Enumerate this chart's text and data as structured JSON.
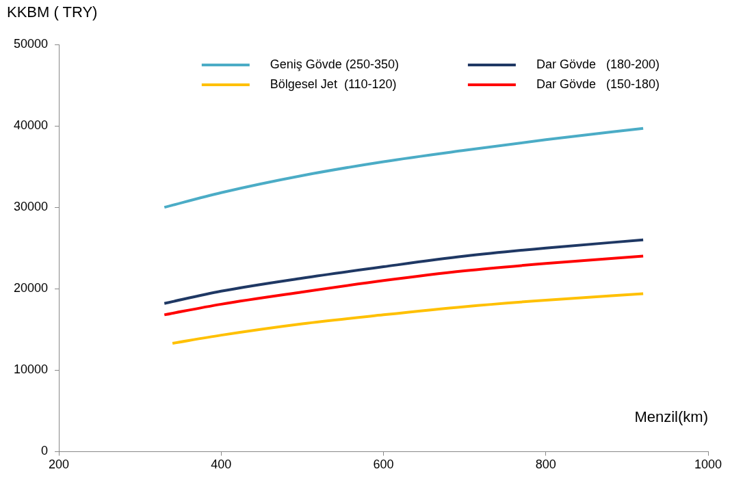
{
  "chart_data": {
    "type": "line",
    "xlabel": "Menzil(km)",
    "ylabel": "KKBM ( TRY)",
    "xlim": [
      200,
      1000
    ],
    "xticks": [
      200,
      400,
      600,
      800,
      1000
    ],
    "ylim": [
      0,
      50000
    ],
    "yticks": [
      0,
      10000,
      20000,
      30000,
      40000,
      50000
    ],
    "grid": false,
    "legend": "top right",
    "marker": "none",
    "line_style": "solid",
    "series": [
      {
        "name": "Geniş Gövde (250-350)",
        "color": "#4bacc6",
        "x": [
          330,
          400,
          500,
          600,
          700,
          800,
          920
        ],
        "values": [
          30000,
          31800,
          33900,
          35600,
          37000,
          38300,
          39700
        ]
      },
      {
        "name": "Dar Gövde   (180-200)",
        "color": "#1f3864",
        "x": [
          330,
          400,
          500,
          600,
          700,
          800,
          920
        ],
        "values": [
          18200,
          19700,
          21300,
          22700,
          24000,
          25000,
          26000
        ]
      },
      {
        "name": "Bölgesel Jet  (110-120)",
        "color": "#ffc000",
        "x": [
          340,
          400,
          500,
          600,
          700,
          800,
          920
        ],
        "values": [
          13300,
          14300,
          15700,
          16800,
          17800,
          18600,
          19400
        ]
      },
      {
        "name": "Dar Gövde   (150-180)",
        "color": "#ff0000",
        "x": [
          330,
          400,
          500,
          600,
          700,
          800,
          920
        ],
        "values": [
          16800,
          18100,
          19600,
          21000,
          22200,
          23100,
          24000
        ]
      }
    ]
  }
}
